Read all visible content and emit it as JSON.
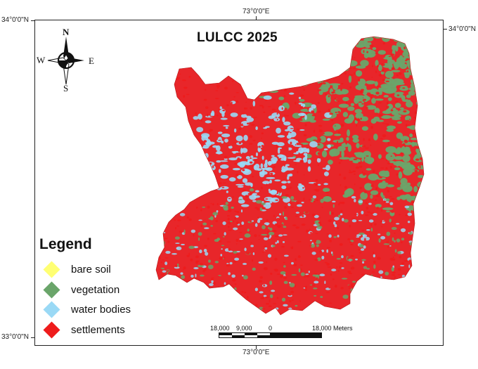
{
  "map": {
    "title": "LULCC 2025",
    "coords": {
      "top_lon": "73°0'0\"E",
      "bottom_lon": "73°0'0\"E",
      "top_lat": "34°0'0\"N",
      "bottom_lat": "33°0'0\"N",
      "right_lat": "34°0'0\"N"
    },
    "compass": {
      "n": "N",
      "s": "S",
      "e": "E",
      "w": "W"
    },
    "legend": {
      "title": "Legend",
      "items": [
        {
          "label": "bare soil",
          "color": "#ffff73"
        },
        {
          "label": "vegetation",
          "color": "#6aa56a"
        },
        {
          "label": "water bodies",
          "color": "#9ad9f5"
        },
        {
          "label": "settlements",
          "color": "#ee1c1c"
        }
      ]
    },
    "scale_bar": {
      "labels": [
        "18,000",
        "9,000",
        "0",
        "18,000 Meters"
      ]
    },
    "colors": {
      "settlements": "#ee1c1c",
      "vegetation": "#6aa56a",
      "water": "#9ad9f5",
      "bare_soil": "#ffff73"
    }
  }
}
